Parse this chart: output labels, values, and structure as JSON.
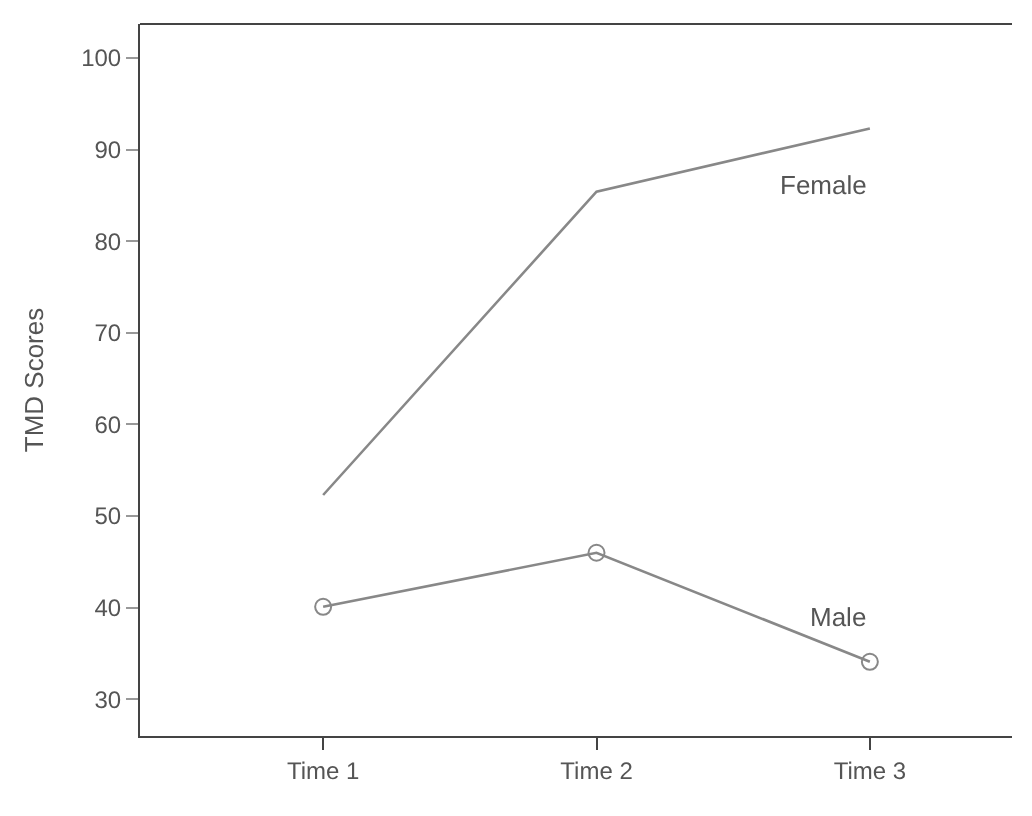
{
  "chart_data": {
    "type": "line",
    "ylabel": "TMD Scores",
    "categories": [
      "Time 1",
      "Time 2",
      "Time 3"
    ],
    "series": [
      {
        "name": "Female",
        "color": "#888888",
        "values": [
          52.3,
          85.4,
          92.3
        ],
        "marker": "none"
      },
      {
        "name": "Male",
        "color": "#888888",
        "values": [
          40.1,
          46.0,
          34.1
        ],
        "marker": "circle"
      }
    ],
    "ylim": [
      26,
      103.7
    ],
    "yticks": [
      30,
      40,
      50,
      60,
      70,
      80,
      90,
      100
    ],
    "legend": false,
    "line_style": "solid"
  }
}
